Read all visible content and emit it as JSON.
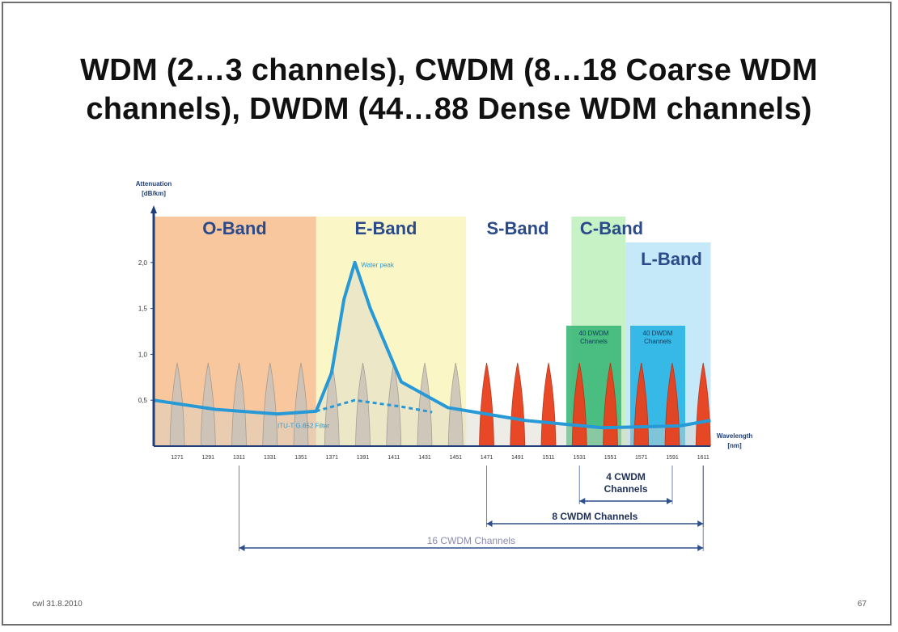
{
  "slide": {
    "title_line1": "WDM (2…3 channels), CWDM (8…18 Coarse WDM",
    "title_line2": "channels), DWDM (44…88 Dense WDM channels)",
    "footer_left": "cwl 31.8.2010",
    "footer_right": "67"
  },
  "chart_data": {
    "type": "area",
    "ylabel": "Attenuation [dB/km]",
    "xlabel": "Wavelength [nm]",
    "y_ticks": [
      "2,0",
      "1,5",
      "1,0",
      "0,5"
    ],
    "x_ticks": [
      "1271",
      "1291",
      "1311",
      "1331",
      "1351",
      "1371",
      "1391",
      "1411",
      "1431",
      "1451",
      "1471",
      "1491",
      "1511",
      "1531",
      "1551",
      "1571",
      "1591",
      "1611"
    ],
    "bands": [
      {
        "label": "O-Band",
        "color": "#f9c79e"
      },
      {
        "label": "E-Band",
        "color": "#fbf6c6"
      },
      {
        "label": "S-Band",
        "color": "#ffffff"
      },
      {
        "label": "C-Band",
        "color": "#c6f2c6"
      },
      {
        "label": "L-Band",
        "color": "#c6e9fa"
      }
    ],
    "dwdm_boxes": [
      {
        "label_line1": "40 DWDM",
        "label_line2": "Channels",
        "color": "#3cb878"
      },
      {
        "label_line1": "40 DWDM",
        "label_line2": "Channels",
        "color": "#27b4e6"
      }
    ],
    "annotations": {
      "water_peak": "Water peak",
      "filter": "ITU-T G.652 Filter"
    },
    "series": [
      {
        "name": "Water peak",
        "x": [
          1260,
          1300,
          1340,
          1365,
          1375,
          1383,
          1390,
          1400,
          1420,
          1450,
          1500,
          1550,
          1600,
          1620
        ],
        "y": [
          0.5,
          0.4,
          0.35,
          0.38,
          0.8,
          1.6,
          2.0,
          1.5,
          0.7,
          0.42,
          0.28,
          0.2,
          0.22,
          0.28
        ]
      },
      {
        "name": "ITU-T G.652 Filter",
        "x": [
          1365,
          1390,
          1420,
          1440
        ],
        "y": [
          0.38,
          0.5,
          0.43,
          0.37
        ]
      }
    ],
    "cwdm_channels_nm": [
      1271,
      1291,
      1311,
      1331,
      1351,
      1371,
      1391,
      1411,
      1431,
      1451,
      1471,
      1491,
      1511,
      1531,
      1551,
      1571,
      1591,
      1611
    ],
    "highlighted_from_nm": 1471,
    "spans": [
      {
        "label": "4 CWDM",
        "label2": "Channels",
        "from": 1531,
        "to": 1591
      },
      {
        "label": "8 CWDM Channels",
        "from": 1471,
        "to": 1611
      },
      {
        "label": "16 CWDM Channels",
        "from": 1311,
        "to": 1611
      }
    ],
    "ylim": [
      0,
      2.5
    ],
    "xlim": [
      1260,
      1625
    ]
  }
}
